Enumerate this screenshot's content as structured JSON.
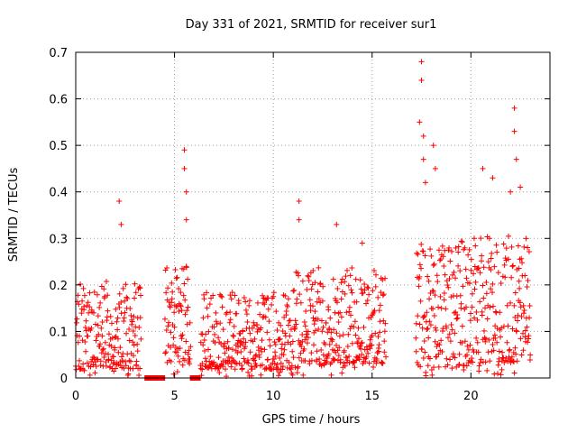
{
  "chart_data": {
    "type": "scatter",
    "title": "Day 331 of 2021, SRMTID for receiver sur1",
    "xlabel": "GPS time / hours",
    "ylabel": "SRMTID / TECUs",
    "xlim": [
      0,
      24
    ],
    "ylim": [
      0,
      0.7
    ],
    "xticks": [
      0,
      5,
      10,
      15,
      20
    ],
    "xtick_labels": [
      "0",
      "5",
      "10",
      "15",
      "20"
    ],
    "yticks": [
      0,
      0.1,
      0.2,
      0.3,
      0.4,
      0.5,
      0.6,
      0.7
    ],
    "ytick_labels": [
      "0",
      "0.1",
      "0.2",
      "0.3",
      "0.4",
      "0.5",
      "0.6",
      "0.7"
    ],
    "grid": true,
    "marker": "+",
    "series_color": "#ff0000",
    "segments": [
      {
        "t0": 0.0,
        "t1": 3.3,
        "mean": 0.1,
        "spread": 0.09
      },
      {
        "t0": 3.5,
        "t1": 4.5,
        "zero": true
      },
      {
        "t0": 4.5,
        "t1": 5.8,
        "mean": 0.12,
        "spread": 0.1
      },
      {
        "t0": 5.8,
        "t1": 6.3,
        "zero": true
      },
      {
        "t0": 6.3,
        "t1": 11.0,
        "mean": 0.09,
        "spread": 0.08
      },
      {
        "t0": 11.0,
        "t1": 15.7,
        "mean": 0.12,
        "spread": 0.1
      },
      {
        "t0": 17.2,
        "t1": 20.0,
        "mean": 0.14,
        "spread": 0.13
      },
      {
        "t0": 20.0,
        "t1": 23.0,
        "mean": 0.15,
        "spread": 0.13
      }
    ],
    "peaks": [
      {
        "x": 2.2,
        "y": 0.38
      },
      {
        "x": 2.3,
        "y": 0.33
      },
      {
        "x": 5.5,
        "y": 0.49
      },
      {
        "x": 5.5,
        "y": 0.45
      },
      {
        "x": 5.6,
        "y": 0.4
      },
      {
        "x": 5.6,
        "y": 0.34
      },
      {
        "x": 11.3,
        "y": 0.38
      },
      {
        "x": 11.3,
        "y": 0.34
      },
      {
        "x": 13.2,
        "y": 0.33
      },
      {
        "x": 14.5,
        "y": 0.29
      },
      {
        "x": 17.5,
        "y": 0.68
      },
      {
        "x": 17.5,
        "y": 0.64
      },
      {
        "x": 17.4,
        "y": 0.55
      },
      {
        "x": 17.6,
        "y": 0.52
      },
      {
        "x": 17.6,
        "y": 0.47
      },
      {
        "x": 17.7,
        "y": 0.42
      },
      {
        "x": 18.1,
        "y": 0.5
      },
      {
        "x": 18.2,
        "y": 0.45
      },
      {
        "x": 20.6,
        "y": 0.45
      },
      {
        "x": 21.1,
        "y": 0.43
      },
      {
        "x": 22.0,
        "y": 0.4
      },
      {
        "x": 22.2,
        "y": 0.58
      },
      {
        "x": 22.2,
        "y": 0.53
      },
      {
        "x": 22.3,
        "y": 0.47
      },
      {
        "x": 22.5,
        "y": 0.41
      }
    ]
  }
}
